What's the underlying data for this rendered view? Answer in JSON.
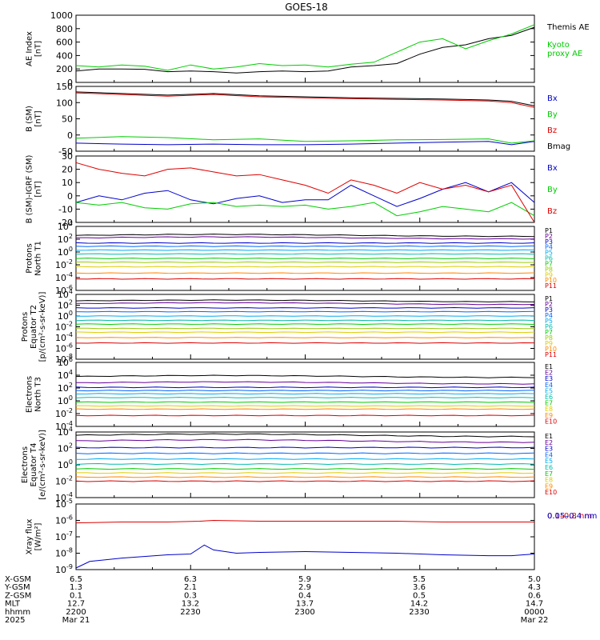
{
  "title": "GOES-18",
  "chart_data": [
    {
      "type": "line",
      "id": "ae",
      "ylabel": [
        "AE Index",
        "[nT]"
      ],
      "ylim": [
        0,
        1000
      ],
      "yscale": "linear",
      "yticks": [
        "1000",
        "800",
        "600",
        "400",
        "200",
        "0"
      ],
      "ytick_values": [
        1000,
        800,
        600,
        400,
        200,
        0
      ],
      "series": [
        {
          "name": "Themis AE",
          "label_lines": [
            "Themis AE"
          ],
          "color": "#000000",
          "x": [
            0,
            0.05,
            0.1,
            0.15,
            0.2,
            0.25,
            0.3,
            0.35,
            0.4,
            0.45,
            0.5,
            0.55,
            0.6,
            0.65,
            0.7,
            0.75,
            0.8,
            0.85,
            0.9,
            0.95,
            1.0
          ],
          "values": [
            170,
            200,
            200,
            195,
            160,
            170,
            160,
            140,
            160,
            170,
            160,
            170,
            230,
            250,
            280,
            420,
            520,
            560,
            650,
            700,
            820
          ]
        },
        {
          "name": "Kyoto proxy AE",
          "label_lines": [
            "Kyoto",
            "proxy AE"
          ],
          "color": "#00cc00",
          "x": [
            0,
            0.05,
            0.1,
            0.15,
            0.2,
            0.25,
            0.3,
            0.35,
            0.4,
            0.45,
            0.5,
            0.55,
            0.6,
            0.65,
            0.7,
            0.75,
            0.8,
            0.85,
            0.9,
            0.95,
            1.0
          ],
          "values": [
            250,
            230,
            260,
            240,
            180,
            260,
            200,
            230,
            280,
            250,
            260,
            230,
            270,
            300,
            450,
            600,
            650,
            500,
            620,
            720,
            860
          ]
        }
      ]
    },
    {
      "type": "line",
      "id": "bsm",
      "ylabel": [
        "B (SM)",
        "[nT]"
      ],
      "ylim": [
        -50,
        150
      ],
      "yscale": "linear",
      "yticks": [
        "150",
        "100",
        "50",
        "0",
        "-50"
      ],
      "ytick_values": [
        150,
        100,
        50,
        0,
        -50
      ],
      "series": [
        {
          "name": "Bx",
          "label_lines": [
            "Bx"
          ],
          "color": "#0000cc",
          "x": [
            0,
            0.1,
            0.2,
            0.3,
            0.4,
            0.5,
            0.6,
            0.7,
            0.8,
            0.9,
            0.95,
            1.0
          ],
          "values": [
            -25,
            -28,
            -30,
            -28,
            -30,
            -30,
            -28,
            -25,
            -22,
            -20,
            -30,
            -20
          ]
        },
        {
          "name": "By",
          "label_lines": [
            "By"
          ],
          "color": "#00cc00",
          "x": [
            0,
            0.1,
            0.2,
            0.3,
            0.4,
            0.5,
            0.6,
            0.7,
            0.8,
            0.9,
            0.95,
            1.0
          ],
          "values": [
            -10,
            -5,
            -8,
            -15,
            -12,
            -20,
            -18,
            -15,
            -14,
            -12,
            -25,
            -18
          ]
        },
        {
          "name": "Bz",
          "label_lines": [
            "Bz"
          ],
          "color": "#dd0000",
          "x": [
            0,
            0.1,
            0.2,
            0.3,
            0.4,
            0.5,
            0.6,
            0.7,
            0.8,
            0.9,
            0.95,
            1.0
          ],
          "values": [
            130,
            125,
            120,
            125,
            118,
            115,
            112,
            110,
            108,
            105,
            100,
            85
          ]
        },
        {
          "name": "Bmag",
          "label_lines": [
            "Bmag"
          ],
          "color": "#000000",
          "x": [
            0,
            0.1,
            0.2,
            0.3,
            0.4,
            0.5,
            0.6,
            0.7,
            0.8,
            0.9,
            0.95,
            1.0
          ],
          "values": [
            133,
            128,
            123,
            128,
            121,
            118,
            115,
            113,
            111,
            108,
            104,
            90
          ]
        }
      ]
    },
    {
      "type": "line",
      "id": "bigrf",
      "ylabel": [
        "B (SM)-IGRF (SM)",
        "[nT]"
      ],
      "ylim": [
        -20,
        30
      ],
      "yscale": "linear",
      "yticks": [
        "30",
        "20",
        "10",
        "0",
        "-10",
        "-20"
      ],
      "ytick_values": [
        30,
        20,
        10,
        0,
        -10,
        -20
      ],
      "series": [
        {
          "name": "Bx",
          "label_lines": [
            "Bx"
          ],
          "color": "#0000cc",
          "x": [
            0,
            0.05,
            0.1,
            0.15,
            0.2,
            0.25,
            0.3,
            0.35,
            0.4,
            0.45,
            0.5,
            0.55,
            0.6,
            0.65,
            0.7,
            0.75,
            0.8,
            0.85,
            0.9,
            0.95,
            1.0
          ],
          "values": [
            -5,
            0,
            -3,
            2,
            4,
            -3,
            -6,
            -2,
            0,
            -5,
            -3,
            -3,
            8,
            0,
            -8,
            -2,
            5,
            10,
            3,
            10,
            -5
          ]
        },
        {
          "name": "By",
          "label_lines": [
            "By"
          ],
          "color": "#00cc00",
          "x": [
            0,
            0.05,
            0.1,
            0.15,
            0.2,
            0.25,
            0.3,
            0.35,
            0.4,
            0.45,
            0.5,
            0.55,
            0.6,
            0.65,
            0.7,
            0.75,
            0.8,
            0.85,
            0.9,
            0.95,
            1.0
          ],
          "values": [
            -5,
            -7,
            -5,
            -9,
            -10,
            -6,
            -5,
            -8,
            -7,
            -8,
            -7,
            -10,
            -8,
            -5,
            -15,
            -12,
            -8,
            -10,
            -12,
            -5,
            -15
          ]
        },
        {
          "name": "Bz",
          "label_lines": [
            "Bz"
          ],
          "color": "#dd0000",
          "x": [
            0,
            0.05,
            0.1,
            0.15,
            0.2,
            0.25,
            0.3,
            0.35,
            0.4,
            0.45,
            0.5,
            0.55,
            0.6,
            0.65,
            0.7,
            0.75,
            0.8,
            0.85,
            0.9,
            0.95,
            1.0
          ],
          "values": [
            25,
            20,
            17,
            15,
            20,
            21,
            18,
            15,
            16,
            12,
            8,
            2,
            12,
            8,
            2,
            10,
            5,
            8,
            3,
            8,
            -20
          ]
        }
      ]
    },
    {
      "type": "line",
      "id": "protons_n",
      "ylabel": [
        "Protons",
        "North T1"
      ],
      "ylim": [
        -6,
        4
      ],
      "yscale": "log",
      "yticks": [
        "4",
        "2",
        "0",
        "-2",
        "-4",
        "-6"
      ],
      "ytick_values": [
        4,
        2,
        0,
        -2,
        -4,
        -6
      ],
      "channels": [
        "P1",
        "P2",
        "P3",
        "P4",
        "P5",
        "P6",
        "P7",
        "P8",
        "P9",
        "P10",
        "P11"
      ],
      "channel_colors": [
        "#000000",
        "#660099",
        "#0000cc",
        "#0066ff",
        "#00aaee",
        "#00bbaa",
        "#00cc00",
        "#99cc00",
        "#ddcc00",
        "#ff8800",
        "#dd0000"
      ],
      "channel_levels": [
        2.6,
        2.2,
        1.4,
        0.9,
        0.3,
        -0.3,
        -1.0,
        -1.6,
        -2.3,
        -3.3,
        -4.2
      ]
    },
    {
      "type": "line",
      "id": "protons_e",
      "ylabel": [
        "Protons",
        "Equator T2",
        "[p/(cm²-s-sr-keV)]"
      ],
      "ylim": [
        -8,
        4
      ],
      "yscale": "log",
      "yticks": [
        "4",
        "2",
        "0",
        "-2",
        "-4",
        "-6",
        "-8"
      ],
      "ytick_values": [
        4,
        2,
        0,
        -2,
        -4,
        -6,
        -8
      ],
      "channels": [
        "P1",
        "P2",
        "P3",
        "P4",
        "P5",
        "P6",
        "P7",
        "P8",
        "P9",
        "P10",
        "P11"
      ],
      "channel_colors": [
        "#000000",
        "#660099",
        "#0000cc",
        "#0066ff",
        "#00aaee",
        "#00bbaa",
        "#00cc00",
        "#99cc00",
        "#ddcc00",
        "#ff8800",
        "#dd0000"
      ],
      "channel_levels": [
        2.8,
        2.3,
        1.5,
        0.8,
        0.0,
        -0.8,
        -1.5,
        -2.3,
        -3.0,
        -4.0,
        -5.0
      ]
    },
    {
      "type": "line",
      "id": "electrons_n",
      "ylabel": [
        "Electrons",
        "North T3"
      ],
      "ylim": [
        -4,
        6
      ],
      "yscale": "log",
      "yticks": [
        "6",
        "4",
        "2",
        "0",
        "-2",
        "-4"
      ],
      "ytick_values": [
        6,
        4,
        2,
        0,
        -2,
        -4
      ],
      "channels": [
        "E1",
        "E2",
        "E3",
        "E4",
        "E5",
        "E6",
        "E7",
        "E8",
        "E9",
        "E10"
      ],
      "channel_colors": [
        "#000000",
        "#660099",
        "#0000cc",
        "#0066ff",
        "#00aaee",
        "#00bbaa",
        "#00cc00",
        "#ddcc00",
        "#ff8800",
        "#dd0000"
      ],
      "channel_levels": [
        3.8,
        2.8,
        2.1,
        1.6,
        1.1,
        0.5,
        -0.2,
        -0.8,
        -1.3,
        -2.3
      ]
    },
    {
      "type": "line",
      "id": "electrons_e",
      "ylabel": [
        "Electrons",
        "Equator T4",
        "[e/(cm²-s-sr-keV)]"
      ],
      "ylim": [
        -4,
        4
      ],
      "yscale": "log",
      "yticks": [
        "4",
        "2",
        "0",
        "-2",
        "-4"
      ],
      "ytick_values": [
        4,
        2,
        0,
        -2,
        -4
      ],
      "channels": [
        "E1",
        "E2",
        "E3",
        "E4",
        "E5",
        "E6",
        "E7",
        "E8",
        "E9",
        "E10"
      ],
      "channel_colors": [
        "#000000",
        "#660099",
        "#0000cc",
        "#0066ff",
        "#00aaee",
        "#00bbaa",
        "#00cc00",
        "#ddcc00",
        "#ff8800",
        "#dd0000"
      ],
      "channel_levels": [
        3.6,
        2.9,
        2.1,
        1.4,
        0.7,
        0.1,
        -0.5,
        -1.0,
        -1.5,
        -2.0
      ]
    },
    {
      "type": "line",
      "id": "xray",
      "ylabel": [
        "Xray flux",
        "[W/m²]"
      ],
      "ylim": [
        -9,
        -5
      ],
      "yscale": "log",
      "yticks": [
        "-5",
        "-6",
        "-7",
        "-8",
        "-9"
      ],
      "ytick_values": [
        -5,
        -6,
        -7,
        -8,
        -9
      ],
      "series": [
        {
          "name": "0.1-0.8 nm",
          "label_lines": [
            "0.1–0.8 nm"
          ],
          "color": "#dd0000",
          "x": [
            0,
            0.1,
            0.2,
            0.27,
            0.3,
            0.4,
            0.5,
            0.6,
            0.7,
            0.8,
            0.9,
            1.0
          ],
          "values": [
            -6.15,
            -6.1,
            -6.1,
            -6.05,
            -6.0,
            -6.05,
            -6.05,
            -6.05,
            -6.05,
            -6.1,
            -6.1,
            -6.1
          ]
        },
        {
          "name": "0.05-0.4 nm",
          "label_lines": [
            "0.05–0.4 nm"
          ],
          "color": "#0000cc",
          "x": [
            0,
            0.03,
            0.1,
            0.2,
            0.25,
            0.28,
            0.3,
            0.35,
            0.4,
            0.5,
            0.6,
            0.7,
            0.8,
            0.9,
            0.95,
            1.0
          ],
          "values": [
            -8.9,
            -8.5,
            -8.3,
            -8.1,
            -8.05,
            -7.5,
            -7.8,
            -8.0,
            -7.95,
            -7.9,
            -7.95,
            -8.0,
            -8.1,
            -8.15,
            -8.15,
            -8.05
          ]
        }
      ]
    }
  ],
  "xaxis": {
    "rows": [
      {
        "label": "X-GSM",
        "values": [
          "6.5",
          "6.3",
          "5.9",
          "5.5",
          "5.0"
        ]
      },
      {
        "label": "Y-GSM",
        "values": [
          "1.3",
          "2.1",
          "2.9",
          "3.6",
          "4.3"
        ]
      },
      {
        "label": "Z-GSM",
        "values": [
          "0.1",
          "0.3",
          "0.4",
          "0.5",
          "0.6"
        ]
      },
      {
        "label": "MLT",
        "values": [
          "12.7",
          "13.2",
          "13.7",
          "14.2",
          "14.7"
        ]
      },
      {
        "label": "hhmm",
        "values": [
          "2200",
          "2230",
          "2300",
          "2330",
          "0000"
        ]
      },
      {
        "label": "2025",
        "values": [
          "Mar 21",
          "",
          "",
          "",
          "Mar 22"
        ]
      }
    ]
  }
}
